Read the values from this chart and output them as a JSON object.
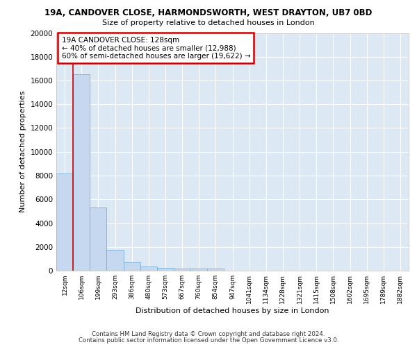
{
  "title1": "19A, CANDOVER CLOSE, HARMONDSWORTH, WEST DRAYTON, UB7 0BD",
  "title2": "Size of property relative to detached houses in London",
  "xlabel": "Distribution of detached houses by size in London",
  "ylabel": "Number of detached properties",
  "bar_color": "#c5d8ef",
  "bar_edge_color": "#7aafd4",
  "categories": [
    "12sqm",
    "106sqm",
    "199sqm",
    "293sqm",
    "386sqm",
    "480sqm",
    "573sqm",
    "667sqm",
    "760sqm",
    "854sqm",
    "947sqm",
    "1041sqm",
    "1134sqm",
    "1228sqm",
    "1321sqm",
    "1415sqm",
    "1508sqm",
    "1602sqm",
    "1695sqm",
    "1789sqm",
    "1882sqm"
  ],
  "values": [
    8150,
    16500,
    5300,
    1750,
    700,
    350,
    250,
    200,
    175,
    150,
    0,
    0,
    0,
    0,
    0,
    0,
    0,
    0,
    0,
    0,
    0
  ],
  "ylim": [
    0,
    20000
  ],
  "yticks": [
    0,
    2000,
    4000,
    6000,
    8000,
    10000,
    12000,
    14000,
    16000,
    18000,
    20000
  ],
  "annotation_text": "19A CANDOVER CLOSE: 128sqm\n← 40% of detached houses are smaller (12,988)\n60% of semi-detached houses are larger (19,622) →",
  "property_bar_index": 1,
  "footer1": "Contains HM Land Registry data © Crown copyright and database right 2024.",
  "footer2": "Contains public sector information licensed under the Open Government Licence v3.0.",
  "bg_color": "#dde8f5",
  "grid_color": "#ffffff",
  "annotation_box_color": "#ffffff",
  "annotation_border_color": "#cc0000",
  "vline_color": "#cc0000"
}
